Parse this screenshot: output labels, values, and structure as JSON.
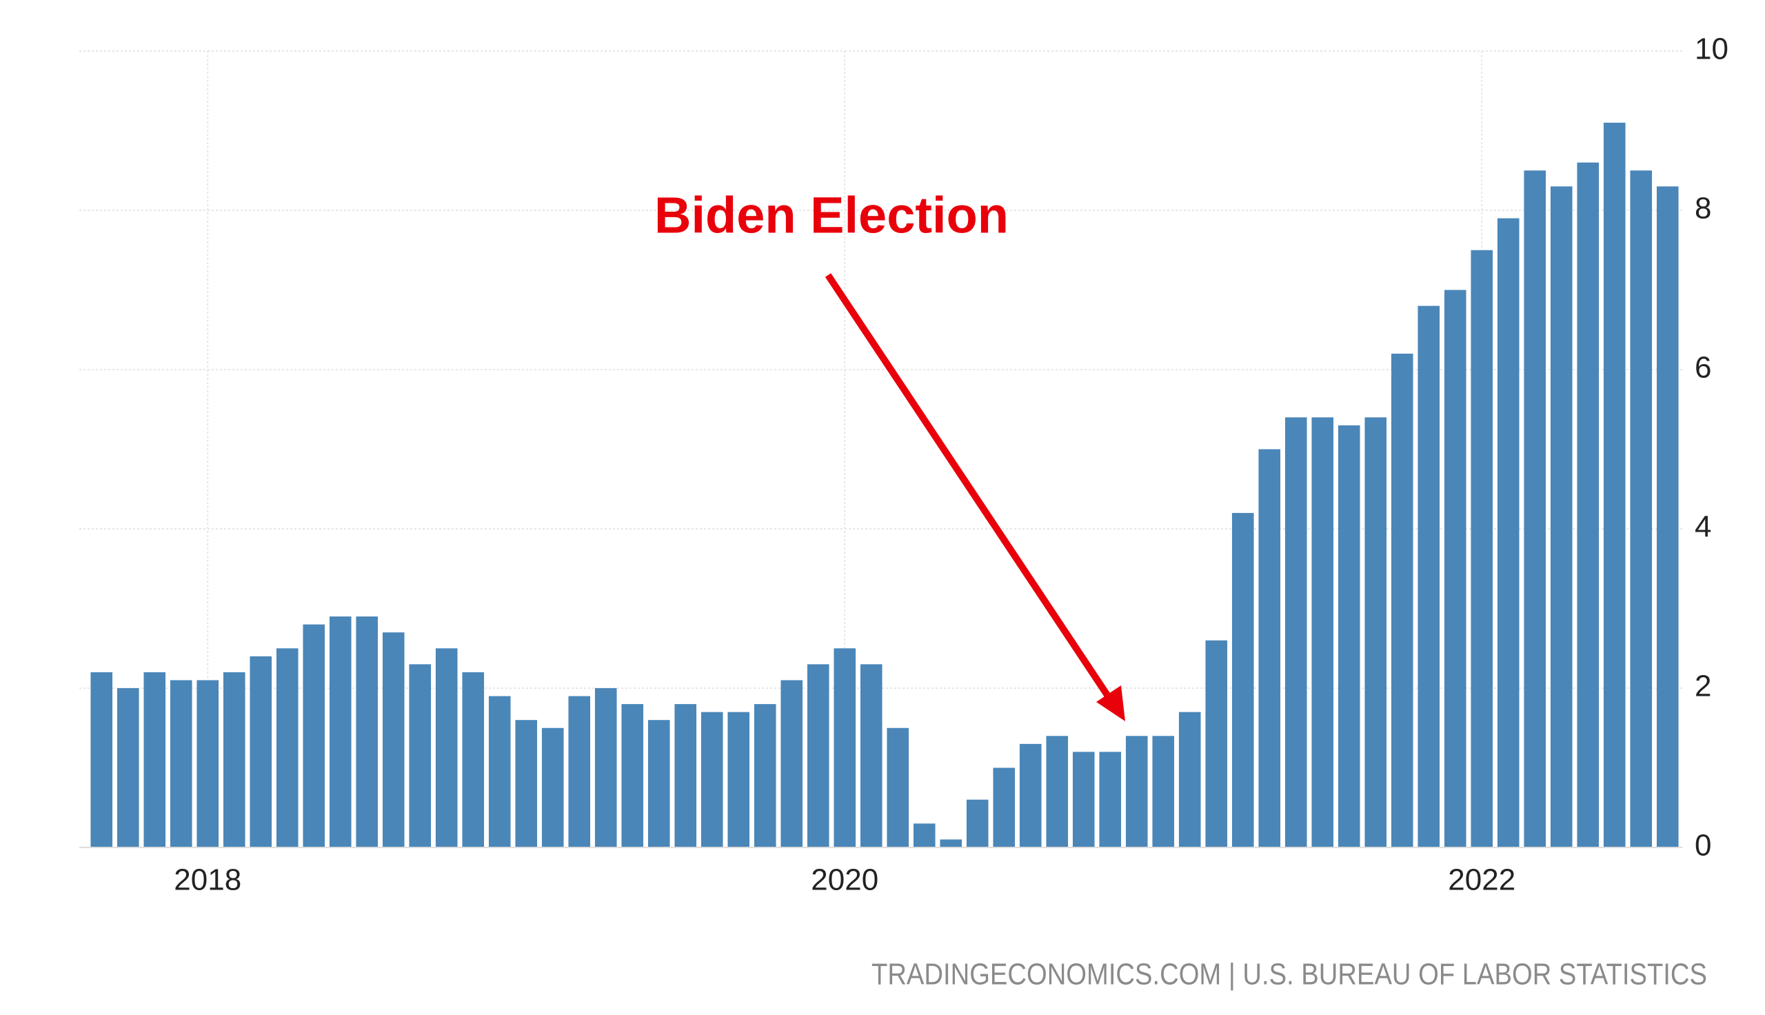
{
  "chart_data": {
    "type": "bar",
    "annotation": "Biden Election",
    "source": "TRADINGECONOMICS.COM | U.S. BUREAU OF LABOR STATISTICS",
    "categories": [
      null,
      null,
      null,
      null,
      "2018",
      null,
      null,
      null,
      null,
      null,
      null,
      null,
      null,
      null,
      null,
      null,
      null,
      null,
      null,
      null,
      null,
      null,
      null,
      null,
      null,
      null,
      null,
      null,
      "2020",
      null,
      null,
      null,
      null,
      null,
      null,
      null,
      null,
      null,
      null,
      null,
      null,
      null,
      null,
      null,
      null,
      null,
      null,
      null,
      null,
      null,
      null,
      null,
      "2022",
      null,
      null,
      null,
      null,
      null,
      null,
      null
    ],
    "values": [
      2.2,
      2.0,
      2.2,
      2.1,
      2.1,
      2.2,
      2.4,
      2.5,
      2.8,
      2.9,
      2.9,
      2.7,
      2.3,
      2.5,
      2.2,
      1.9,
      1.6,
      1.5,
      1.9,
      2.0,
      1.8,
      1.6,
      1.8,
      1.7,
      1.7,
      1.8,
      2.1,
      2.3,
      2.5,
      2.3,
      1.5,
      0.3,
      0.1,
      0.6,
      1.0,
      1.3,
      1.4,
      1.2,
      1.2,
      1.4,
      1.4,
      1.7,
      2.6,
      4.2,
      5.0,
      5.4,
      5.4,
      5.3,
      5.4,
      6.2,
      6.8,
      7.0,
      7.5,
      7.9,
      8.5,
      8.3,
      8.6,
      9.1,
      8.5,
      8.3
    ],
    "color": "#4a86b8",
    "annotation_color": "#e8000b",
    "ylim": [
      0,
      10
    ],
    "yticks": [
      0,
      2,
      4,
      6,
      8,
      10
    ],
    "grid": true
  }
}
